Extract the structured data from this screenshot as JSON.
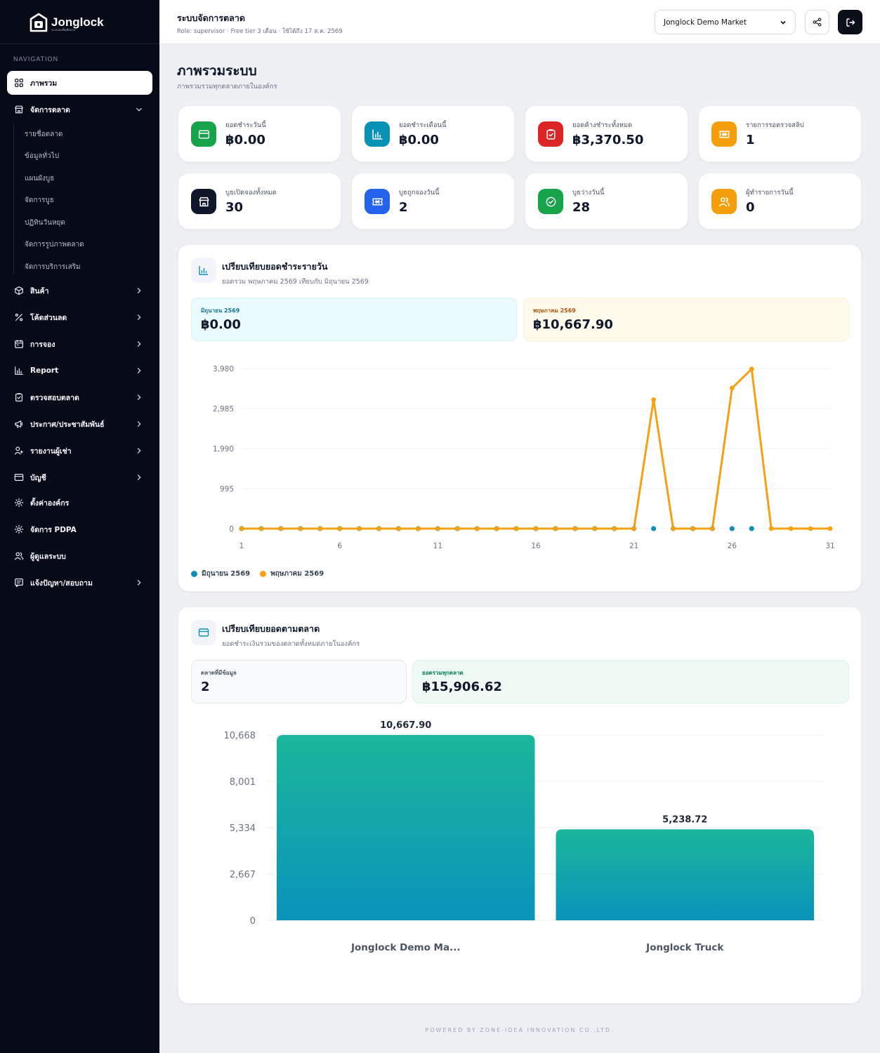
{
  "brand": {
    "name": "Jonglock",
    "tagline": "ระบบจองพื้นที่ตลาด"
  },
  "nav": {
    "heading": "NAVIGATION",
    "items": [
      {
        "label": "ภาพรวม",
        "icon": "grid-icon",
        "active": true,
        "chevron": false
      },
      {
        "label": "จัดการตลาด",
        "icon": "store-icon",
        "chevron": "down"
      },
      {
        "label": "สินค้า",
        "icon": "box-icon",
        "chevron": "right"
      },
      {
        "label": "โค้ดส่วนลด",
        "icon": "percent-icon",
        "chevron": "right"
      },
      {
        "label": "การจอง",
        "icon": "calendar-icon",
        "chevron": "right"
      },
      {
        "label": "Report",
        "icon": "bar-chart-icon",
        "chevron": "right"
      },
      {
        "label": "ตรวจสอบตลาด",
        "icon": "clipboard-check-icon",
        "chevron": "right"
      },
      {
        "label": "ประกาศ/ประชาสัมพันธ์",
        "icon": "megaphone-icon",
        "chevron": "right"
      },
      {
        "label": "รายงานผู้เช่า",
        "icon": "user-report-icon",
        "chevron": "right"
      },
      {
        "label": "บัญชี",
        "icon": "credit-card-icon",
        "chevron": "right"
      },
      {
        "label": "ตั้งค่าองค์กร",
        "icon": "gear-icon",
        "chevron": false
      },
      {
        "label": "จัดการ PDPA",
        "icon": "gear-icon",
        "chevron": false
      },
      {
        "label": "ผู้ดูแลระบบ",
        "icon": "users-icon",
        "chevron": false
      },
      {
        "label": "แจ้งปัญหา/สอบถาม",
        "icon": "message-icon",
        "chevron": "right"
      }
    ],
    "market_sub": [
      "รายชื่อตลาด",
      "ข้อมูลทั่วไป",
      "แผนผังบูธ",
      "จัดการบูธ",
      "ปฏิทินวันหยุด",
      "จัดการรูปภาพตลาด",
      "จัดการบริการเสริม"
    ]
  },
  "topbar": {
    "title": "ระบบจัดการตลาด",
    "subtitle": "Role: supervisor · Free tier 3 เดือน · ใช้ได้ถึง 17 ส.ค. 2569",
    "selected_market": "Jonglock Demo Market"
  },
  "page": {
    "title": "ภาพรวมระบบ",
    "subtitle": "ภาพรวมรวมทุกตลาดภายในองค์กร"
  },
  "stats": [
    {
      "label": "ยอดชำระวันนี้",
      "value": "฿0.00",
      "color": "#16a34a",
      "icon": "card-icon"
    },
    {
      "label": "ยอดชำระเดือนนี้",
      "value": "฿0.00",
      "color": "#0891b2",
      "icon": "bar-chart-icon"
    },
    {
      "label": "ยอดค้างชำระทั้งหมด",
      "value": "฿3,370.50",
      "color": "#dc2626",
      "icon": "clipboard-icon"
    },
    {
      "label": "รายการรอตรวจสลิป",
      "value": "1",
      "color": "#f59e0b",
      "icon": "ticket-icon"
    },
    {
      "label": "บูธเปิดจองทั้งหมด",
      "value": "30",
      "color": "#0f172a",
      "icon": "store-icon"
    },
    {
      "label": "บูธถูกจองวันนี้",
      "value": "2",
      "color": "#2563eb",
      "icon": "ticket-icon"
    },
    {
      "label": "บูธว่างวันนี้",
      "value": "28",
      "color": "#16a34a",
      "icon": "check-circle-icon"
    },
    {
      "label": "ผู้ทำรายการวันนี้",
      "value": "0",
      "color": "#f59e0b",
      "icon": "users-icon"
    }
  ],
  "daily": {
    "title": "เปรียบเทียบยอดชำระรายวัน",
    "subtitle": "ยอดรวม พฤษภาคม 2569 เทียบกับ มิถุนายน 2569",
    "pills": [
      {
        "label": "มิถุนายน 2569",
        "value": "฿0.00"
      },
      {
        "label": "พฤษภาคม 2569",
        "value": "฿10,667.90"
      }
    ]
  },
  "market_compare": {
    "title": "เปรียบเทียบยอดตามตลาด",
    "subtitle": "ยอดชำระเงินรวมของตลาดทั้งหมดภายในองค์กร",
    "pills": [
      {
        "label": "ตลาดที่มีข้อมูล",
        "value": "2"
      },
      {
        "label": "ยอดรวมทุกตลาด",
        "value": "฿15,906.62"
      }
    ]
  },
  "chart_data": [
    {
      "type": "line",
      "x": [
        1,
        2,
        3,
        4,
        5,
        6,
        7,
        8,
        9,
        10,
        11,
        12,
        13,
        14,
        15,
        16,
        17,
        18,
        19,
        20,
        21,
        22,
        23,
        24,
        25,
        26,
        27,
        28,
        29,
        30,
        31
      ],
      "x_ticks": [
        "1",
        "6",
        "11",
        "16",
        "21",
        "26",
        "31"
      ],
      "y_ticks": [
        "0",
        "995",
        "1,990",
        "2,985",
        "3,980"
      ],
      "ylim": [
        0,
        3980
      ],
      "grid": true,
      "legend": "bottom-left",
      "series": [
        {
          "name": "มิถุนายน 2569",
          "color": "#0e90b8",
          "points": [
            [
              1,
              0
            ],
            [
              2,
              0
            ],
            [
              3,
              0
            ],
            [
              4,
              0
            ],
            [
              5,
              0
            ],
            [
              6,
              0
            ],
            [
              7,
              0
            ],
            [
              8,
              0
            ],
            [
              9,
              0
            ],
            [
              10,
              0
            ],
            [
              11,
              0
            ],
            [
              12,
              0
            ],
            [
              13,
              0
            ],
            [
              14,
              0
            ],
            [
              15,
              0
            ],
            [
              16,
              0
            ],
            [
              17,
              0
            ],
            [
              18,
              0
            ],
            [
              19,
              0
            ],
            [
              20,
              0
            ],
            [
              21,
              0
            ],
            [
              22,
              0
            ],
            [
              23,
              0
            ],
            [
              24,
              0
            ],
            [
              25,
              0
            ],
            [
              26,
              0
            ],
            [
              27,
              0
            ]
          ]
        },
        {
          "name": "พฤษภาคม 2569",
          "color": "#f5a113",
          "points": [
            [
              1,
              0
            ],
            [
              2,
              0
            ],
            [
              3,
              0
            ],
            [
              4,
              0
            ],
            [
              5,
              0
            ],
            [
              6,
              0
            ],
            [
              7,
              0
            ],
            [
              8,
              0
            ],
            [
              9,
              0
            ],
            [
              10,
              0
            ],
            [
              11,
              0
            ],
            [
              12,
              0
            ],
            [
              13,
              0
            ],
            [
              14,
              0
            ],
            [
              15,
              0
            ],
            [
              16,
              0
            ],
            [
              17,
              0
            ],
            [
              18,
              0
            ],
            [
              19,
              0
            ],
            [
              20,
              0
            ],
            [
              21,
              0
            ],
            [
              22,
              3205
            ],
            [
              23,
              0
            ],
            [
              24,
              0
            ],
            [
              25,
              0
            ],
            [
              26,
              3495
            ],
            [
              27,
              3968
            ],
            [
              28,
              0
            ],
            [
              29,
              0
            ],
            [
              30,
              0
            ],
            [
              31,
              0
            ]
          ]
        }
      ]
    },
    {
      "type": "bar",
      "categories": [
        "Jonglock Demo Ma...",
        "Jonglock Truck"
      ],
      "values": [
        10667.9,
        5238.72
      ],
      "value_labels": [
        "10,667.90",
        "5,238.72"
      ],
      "y_ticks": [
        "0",
        "2,667",
        "5,334",
        "8,001",
        "10,668"
      ],
      "ylim": [
        0,
        10668
      ],
      "grid": true
    }
  ],
  "footer": "POWERED BY ZONE-IDEA INNOVATION CO.,LTD."
}
